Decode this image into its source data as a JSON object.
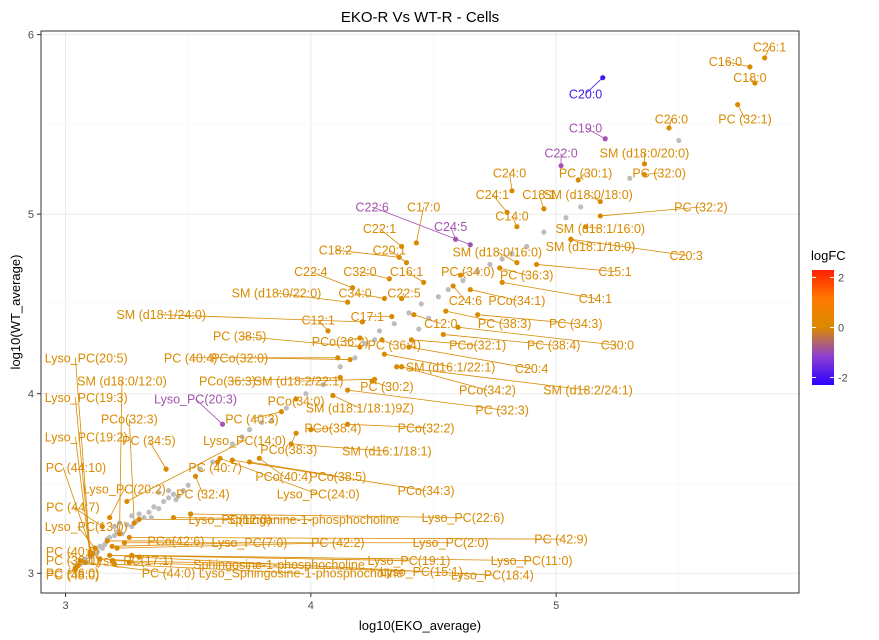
{
  "chart_data": {
    "type": "scatter",
    "title": "EKO-R Vs WT-R - Cells",
    "xlabel": "log10(EKO_average)",
    "ylabel": "log10(WT_average)",
    "xlim": [
      2.9,
      5.99
    ],
    "ylim": [
      2.89,
      6.02
    ],
    "xticks": [
      3,
      4,
      5
    ],
    "yticks": [
      3,
      4,
      5,
      6
    ],
    "grid": true,
    "legend": {
      "title": "logFC",
      "position": "right",
      "ticks": [
        2,
        0,
        -2
      ],
      "range": [
        -2.3,
        2.3
      ],
      "gradient": [
        "#2a00ff",
        "#8e3fd0",
        "#d98a00",
        "#ff7a00",
        "#ff2000"
      ]
    },
    "colors": {
      "grey": "#bdbdbd",
      "orange": "#d98a00",
      "purple": "#a452b0",
      "blue": "#3a1cf0"
    },
    "labeled_points": [
      {
        "label": "C26:1",
        "x": 5.85,
        "y": 5.87,
        "logFC": 0.1,
        "lx": 5.87,
        "ly": 5.93
      },
      {
        "label": "C16:0",
        "x": 5.79,
        "y": 5.82,
        "logFC": 0.15,
        "lx": 5.69,
        "ly": 5.85
      },
      {
        "label": "C18:0",
        "x": 5.81,
        "y": 5.73,
        "logFC": 0.2,
        "lx": 5.79,
        "ly": 5.76
      },
      {
        "label": "C20:0",
        "x": 5.19,
        "y": 5.76,
        "logFC": -2.3,
        "lx": 5.12,
        "ly": 5.67
      },
      {
        "label": "PC (32:1)",
        "x": 5.74,
        "y": 5.61,
        "logFC": 0.3,
        "lx": 5.77,
        "ly": 5.53
      },
      {
        "label": "C26:0",
        "x": 5.46,
        "y": 5.48,
        "logFC": 0.2,
        "lx": 5.47,
        "ly": 5.53
      },
      {
        "label": "C19:0",
        "x": 5.2,
        "y": 5.42,
        "logFC": -1.0,
        "lx": 5.12,
        "ly": 5.48
      },
      {
        "label": "C22:0",
        "x": 5.02,
        "y": 5.27,
        "logFC": -1.2,
        "lx": 5.02,
        "ly": 5.34
      },
      {
        "label": "SM (d18:0/20:0)",
        "x": 5.36,
        "y": 5.28,
        "logFC": 0.25,
        "lx": 5.36,
        "ly": 5.34
      },
      {
        "label": "PC (30:1)",
        "x": 5.09,
        "y": 5.19,
        "logFC": 0.25,
        "lx": 5.12,
        "ly": 5.23
      },
      {
        "label": "PC (32:0)",
        "x": 5.36,
        "y": 5.22,
        "logFC": 0.3,
        "lx": 5.42,
        "ly": 5.23
      },
      {
        "label": "C24:0",
        "x": 4.82,
        "y": 5.13,
        "logFC": 0.15,
        "lx": 4.81,
        "ly": 5.23
      },
      {
        "label": "C24:1",
        "x": 4.8,
        "y": 5.01,
        "logFC": 0.15,
        "lx": 4.74,
        "ly": 5.11
      },
      {
        "label": "C18:1",
        "x": 4.95,
        "y": 5.03,
        "logFC": 0.1,
        "lx": 4.93,
        "ly": 5.11
      },
      {
        "label": "SM (d18:0/18:0)",
        "x": 5.18,
        "y": 5.07,
        "logFC": 0.25,
        "lx": 5.13,
        "ly": 5.11
      },
      {
        "label": "PC (32:2)",
        "x": 5.18,
        "y": 4.99,
        "logFC": 0.3,
        "lx": 5.59,
        "ly": 5.04
      },
      {
        "label": "C22:6",
        "x": 4.65,
        "y": 4.83,
        "logFC": -1.5,
        "lx": 4.25,
        "ly": 5.04
      },
      {
        "label": "C17:0",
        "x": 4.43,
        "y": 4.84,
        "logFC": 0.1,
        "lx": 4.46,
        "ly": 5.04
      },
      {
        "label": "C14:0",
        "x": 4.84,
        "y": 4.93,
        "logFC": 0.15,
        "lx": 4.82,
        "ly": 4.99
      },
      {
        "label": "C24:5",
        "x": 4.59,
        "y": 4.86,
        "logFC": -0.8,
        "lx": 4.57,
        "ly": 4.93
      },
      {
        "label": "SM (d18:1/16:0)",
        "x": 5.12,
        "y": 4.93,
        "logFC": 0.25,
        "lx": 5.18,
        "ly": 4.92
      },
      {
        "label": "C22:1",
        "x": 4.37,
        "y": 4.82,
        "logFC": 0.1,
        "lx": 4.28,
        "ly": 4.92
      },
      {
        "label": "SM (d18:1/18:0)",
        "x": 5.06,
        "y": 4.86,
        "logFC": 0.25,
        "lx": 5.14,
        "ly": 4.82
      },
      {
        "label": "C20:3",
        "x": 5.06,
        "y": 4.86,
        "logFC": 0.3,
        "lx": 5.53,
        "ly": 4.77
      },
      {
        "label": "C18:2",
        "x": 4.36,
        "y": 4.76,
        "logFC": 0.1,
        "lx": 4.1,
        "ly": 4.8
      },
      {
        "label": "C20:1",
        "x": 4.39,
        "y": 4.73,
        "logFC": 0.1,
        "lx": 4.32,
        "ly": 4.8
      },
      {
        "label": "SM (d18:0/16:0)",
        "x": 4.84,
        "y": 4.73,
        "logFC": 0.25,
        "lx": 4.76,
        "ly": 4.79
      },
      {
        "label": "C22:4",
        "x": 4.17,
        "y": 4.59,
        "logFC": 0.1,
        "lx": 4.0,
        "ly": 4.68
      },
      {
        "label": "C32:0",
        "x": 4.32,
        "y": 4.64,
        "logFC": 0.1,
        "lx": 4.2,
        "ly": 4.68
      },
      {
        "label": "C16:1",
        "x": 4.46,
        "y": 4.62,
        "logFC": 0.1,
        "lx": 4.39,
        "ly": 4.68
      },
      {
        "label": "PC (34:0)",
        "x": 4.61,
        "y": 4.66,
        "logFC": 0.3,
        "lx": 4.64,
        "ly": 4.68
      },
      {
        "label": "PC (36:3)",
        "x": 4.77,
        "y": 4.7,
        "logFC": 0.3,
        "lx": 4.88,
        "ly": 4.66
      },
      {
        "label": "C15:1",
        "x": 4.92,
        "y": 4.72,
        "logFC": 0.3,
        "lx": 5.24,
        "ly": 4.68
      },
      {
        "label": "SM (d18:0/22:0)",
        "x": 4.15,
        "y": 4.51,
        "logFC": 0.25,
        "lx": 3.86,
        "ly": 4.56
      },
      {
        "label": "C34:0",
        "x": 4.3,
        "y": 4.53,
        "logFC": 0.1,
        "lx": 4.18,
        "ly": 4.56
      },
      {
        "label": "C22:5",
        "x": 4.37,
        "y": 4.53,
        "logFC": 0.1,
        "lx": 4.38,
        "ly": 4.56
      },
      {
        "label": "C24:6",
        "x": 4.58,
        "y": 4.6,
        "logFC": 0.1,
        "lx": 4.63,
        "ly": 4.52
      },
      {
        "label": "PCo(34:1)",
        "x": 4.65,
        "y": 4.58,
        "logFC": 0.25,
        "lx": 4.84,
        "ly": 4.52
      },
      {
        "label": "C14:1",
        "x": 4.78,
        "y": 4.62,
        "logFC": 0.3,
        "lx": 5.16,
        "ly": 4.53
      },
      {
        "label": "SM (d18:1/24:0)",
        "x": 4.21,
        "y": 4.4,
        "logFC": 0.25,
        "lx": 3.39,
        "ly": 4.44
      },
      {
        "label": "C12:1",
        "x": 4.07,
        "y": 4.35,
        "logFC": 0.1,
        "lx": 4.03,
        "ly": 4.41
      },
      {
        "label": "C17:1",
        "x": 4.33,
        "y": 4.43,
        "logFC": 0.1,
        "lx": 4.23,
        "ly": 4.43
      },
      {
        "label": "C12:0",
        "x": 4.42,
        "y": 4.44,
        "logFC": 0.1,
        "lx": 4.53,
        "ly": 4.39
      },
      {
        "label": "PC (38:3)",
        "x": 4.55,
        "y": 4.46,
        "logFC": 0.3,
        "lx": 4.79,
        "ly": 4.39
      },
      {
        "label": "PC (34:3)",
        "x": 4.68,
        "y": 4.44,
        "logFC": 0.3,
        "lx": 5.08,
        "ly": 4.39
      },
      {
        "label": "PC (38:5)",
        "x": 4.2,
        "y": 4.26,
        "logFC": 0.3,
        "lx": 3.71,
        "ly": 4.32
      },
      {
        "label": "PCo(36:2)",
        "x": 4.2,
        "y": 4.31,
        "logFC": 0.25,
        "lx": 4.12,
        "ly": 4.29
      },
      {
        "label": "PC (36:4)",
        "x": 4.29,
        "y": 4.3,
        "logFC": 0.3,
        "lx": 4.34,
        "ly": 4.27
      },
      {
        "label": "PCo(32:1)",
        "x": 4.41,
        "y": 4.3,
        "logFC": 0.25,
        "lx": 4.68,
        "ly": 4.27
      },
      {
        "label": "PC (38:4)",
        "x": 4.54,
        "y": 4.33,
        "logFC": 0.3,
        "lx": 4.99,
        "ly": 4.27
      },
      {
        "label": "C30:0",
        "x": 4.6,
        "y": 4.37,
        "logFC": 0.3,
        "lx": 5.25,
        "ly": 4.27
      },
      {
        "label": "PC (40:4)",
        "x": 4.11,
        "y": 4.2,
        "logFC": 0.3,
        "lx": 3.51,
        "ly": 4.2
      },
      {
        "label": "PCo(32:0)",
        "x": 4.16,
        "y": 4.19,
        "logFC": 0.25,
        "lx": 3.71,
        "ly": 4.2
      },
      {
        "label": "SM (d16:1/22:1)",
        "x": 4.3,
        "y": 4.22,
        "logFC": 0.25,
        "lx": 4.57,
        "ly": 4.15
      },
      {
        "label": "C20:4",
        "x": 4.4,
        "y": 4.26,
        "logFC": 0.3,
        "lx": 4.9,
        "ly": 4.14
      },
      {
        "label": "Lyso_PC(20:5)",
        "x": 3.1,
        "y": 3.12,
        "logFC": 0.1,
        "lx": 3.04,
        "ly": 4.2
      },
      {
        "label": "SM (d18:0/12:0)",
        "x": 3.22,
        "y": 3.22,
        "logFC": 0.25,
        "lx": 3.23,
        "ly": 4.07
      },
      {
        "label": "PCo(36:3)",
        "x": 4.12,
        "y": 4.09,
        "logFC": 0.25,
        "lx": 3.66,
        "ly": 4.07
      },
      {
        "label": "SM (d18:2/22:1)",
        "x": 4.26,
        "y": 4.08,
        "logFC": 0.25,
        "lx": 3.95,
        "ly": 4.07
      },
      {
        "label": "PC (30:2)",
        "x": 4.25,
        "y": 4.07,
        "logFC": 0.3,
        "lx": 4.31,
        "ly": 4.04
      },
      {
        "label": "PCo(34:2)",
        "x": 4.37,
        "y": 4.15,
        "logFC": 0.25,
        "lx": 4.72,
        "ly": 4.02
      },
      {
        "label": "SM (d18:2/24:1)",
        "x": 4.35,
        "y": 4.15,
        "logFC": 0.25,
        "lx": 5.13,
        "ly": 4.02
      },
      {
        "label": "Lyso_PC(19:3)",
        "x": 3.1,
        "y": 3.11,
        "logFC": 0.1,
        "lx": 3.04,
        "ly": 3.98
      },
      {
        "label": "Lyso_PC(20:3)",
        "x": 3.64,
        "y": 3.83,
        "logFC": -0.5,
        "lx": 3.53,
        "ly": 3.97
      },
      {
        "label": "PCo(34:0)",
        "x": 3.94,
        "y": 3.97,
        "logFC": 0.25,
        "lx": 3.94,
        "ly": 3.96
      },
      {
        "label": "SM (d18:1/18:1)9Z)",
        "x": 4.09,
        "y": 3.99,
        "logFC": 0.25,
        "lx": 4.2,
        "ly": 3.92
      },
      {
        "label": "PC (32:3)",
        "x": 4.15,
        "y": 4.02,
        "logFC": 0.3,
        "lx": 4.78,
        "ly": 3.91
      },
      {
        "label": "PCo(32:3)",
        "x": 3.28,
        "y": 3.28,
        "logFC": 0.25,
        "lx": 3.26,
        "ly": 3.86
      },
      {
        "label": "PC (40:3)",
        "x": 3.88,
        "y": 3.9,
        "logFC": 0.3,
        "lx": 3.76,
        "ly": 3.86
      },
      {
        "label": "PCo(38:4)",
        "x": 4.0,
        "y": 3.8,
        "logFC": 0.25,
        "lx": 4.09,
        "ly": 3.81
      },
      {
        "label": "PCo(32:2)",
        "x": 4.15,
        "y": 3.83,
        "logFC": 0.25,
        "lx": 4.47,
        "ly": 3.81
      },
      {
        "label": "Lyso_PC(19:2)",
        "x": 3.1,
        "y": 3.1,
        "logFC": 0.1,
        "lx": 3.04,
        "ly": 3.76
      },
      {
        "label": "PC (34:5)",
        "x": 3.41,
        "y": 3.58,
        "logFC": 0.3,
        "lx": 3.34,
        "ly": 3.74
      },
      {
        "label": "Lyso_PC(14:0)",
        "x": 3.25,
        "y": 3.4,
        "logFC": 0.1,
        "lx": 3.73,
        "ly": 3.74
      },
      {
        "label": "PCo(38:3)",
        "x": 3.94,
        "y": 3.78,
        "logFC": 0.25,
        "lx": 3.91,
        "ly": 3.69
      },
      {
        "label": "SM (d16:1/18:1)",
        "x": 3.92,
        "y": 3.72,
        "logFC": 0.25,
        "lx": 4.31,
        "ly": 3.68
      },
      {
        "label": "PC (44:10)",
        "x": 3.11,
        "y": 3.11,
        "logFC": 0.3,
        "lx": 2.99,
        "ly": 3.59
      },
      {
        "label": "PC (40:7)",
        "x": 3.62,
        "y": 3.62,
        "logFC": 0.3,
        "lx": 3.61,
        "ly": 3.59
      },
      {
        "label": "PCo(40:4)",
        "x": 3.79,
        "y": 3.64,
        "logFC": 0.25,
        "lx": 3.89,
        "ly": 3.54
      },
      {
        "label": "PCo(38:5)",
        "x": 3.75,
        "y": 3.62,
        "logFC": 0.25,
        "lx": 4.11,
        "ly": 3.54
      },
      {
        "label": "Lyso_PC(20:2)",
        "x": 3.18,
        "y": 3.31,
        "logFC": 0.1,
        "lx": 3.24,
        "ly": 3.47
      },
      {
        "label": "PC (32:4)",
        "x": 3.53,
        "y": 3.54,
        "logFC": 0.3,
        "lx": 3.56,
        "ly": 3.44
      },
      {
        "label": "Lyso_PC(24:0)",
        "x": 3.63,
        "y": 3.64,
        "logFC": 0.1,
        "lx": 4.03,
        "ly": 3.44
      },
      {
        "label": "PCo(34:3)",
        "x": 3.68,
        "y": 3.63,
        "logFC": 0.25,
        "lx": 4.47,
        "ly": 3.46
      },
      {
        "label": "PC (44:7)",
        "x": 3.15,
        "y": 3.26,
        "logFC": 0.3,
        "lx": 3.03,
        "ly": 3.37
      },
      {
        "label": "Lyso_PC(13:0)",
        "x": 3.12,
        "y": 3.14,
        "logFC": 0.1,
        "lx": 3.05,
        "ly": 3.26
      },
      {
        "label": "Lyso_PC(12:0)",
        "x": 3.3,
        "y": 3.3,
        "logFC": 0.1,
        "lx": 3.67,
        "ly": 3.3
      },
      {
        "label": "Sphinganine-1-phosphocholine",
        "x": 3.44,
        "y": 3.31,
        "logFC": 0.1,
        "lx": 4.01,
        "ly": 3.3
      },
      {
        "label": "Lyso_PC(22:6)",
        "x": 3.51,
        "y": 3.33,
        "logFC": 0.1,
        "lx": 4.62,
        "ly": 3.31
      },
      {
        "label": "PCo(42:6)",
        "x": 3.17,
        "y": 3.18,
        "logFC": 0.25,
        "lx": 3.45,
        "ly": 3.18
      },
      {
        "label": "Lyso_PC(7:0)",
        "x": 3.19,
        "y": 3.15,
        "logFC": 0.1,
        "lx": 3.75,
        "ly": 3.17
      },
      {
        "label": "PC (42:2)",
        "x": 3.21,
        "y": 3.14,
        "logFC": 0.3,
        "lx": 4.11,
        "ly": 3.17
      },
      {
        "label": "Lyso_PC(2:0)",
        "x": 3.24,
        "y": 3.17,
        "logFC": 0.1,
        "lx": 4.57,
        "ly": 3.17
      },
      {
        "label": "PC (42:9)",
        "x": 3.26,
        "y": 3.2,
        "logFC": 0.3,
        "lx": 5.02,
        "ly": 3.19
      },
      {
        "label": "PC (40:0)",
        "x": 3.06,
        "y": 3.07,
        "logFC": 0.3,
        "lx": 3.01,
        "ly": 3.12
      },
      {
        "label": "Lyso_PC(11:0)",
        "x": 3.27,
        "y": 3.1,
        "logFC": 0.1,
        "lx": 4.9,
        "ly": 3.07
      },
      {
        "label": "Lyso_PC(19:1)",
        "x": 3.18,
        "y": 3.1,
        "logFC": 0.1,
        "lx": 4.4,
        "ly": 3.07
      },
      {
        "label": "PC (38:0)",
        "x": 3.05,
        "y": 3.04,
        "logFC": 0.3,
        "lx": 3.01,
        "ly": 3.07
      },
      {
        "label": "Lyso_PC(17:1)",
        "x": 3.14,
        "y": 3.08,
        "logFC": 0.1,
        "lx": 3.27,
        "ly": 3.07
      },
      {
        "label": "Sphingosine-1-phosphocholine",
        "x": 3.19,
        "y": 3.07,
        "logFC": 0.1,
        "lx": 3.87,
        "ly": 3.05
      },
      {
        "label": "Lyso_PC(15:1)",
        "x": 3.26,
        "y": 3.06,
        "logFC": 0.1,
        "lx": 4.45,
        "ly": 3.01
      },
      {
        "label": "Lyso_PC(18:4)",
        "x": 3.3,
        "y": 3.09,
        "logFC": 0.1,
        "lx": 4.74,
        "ly": 2.99
      },
      {
        "label": "PC (44:0)",
        "x": 3.08,
        "y": 3.06,
        "logFC": 0.3,
        "lx": 3.42,
        "ly": 3.0
      },
      {
        "label": "Lyso_Sphingosine-1-phosphocholine",
        "x": 3.2,
        "y": 3.05,
        "logFC": 0.1,
        "lx": 3.96,
        "ly": 3.0
      },
      {
        "label": "PC (36:0)",
        "x": 3.04,
        "y": 3.03,
        "logFC": 0.3,
        "lx": 3.01,
        "ly": 3.0
      },
      {
        "label": "PC (48:0)",
        "x": 3.04,
        "y": 3.02,
        "logFC": 0.3,
        "lx": 3.01,
        "ly": 2.99
      }
    ],
    "grey_points": [
      [
        3.04,
        3.03
      ],
      [
        3.05,
        3.05
      ],
      [
        3.06,
        3.05
      ],
      [
        3.07,
        3.07
      ],
      [
        3.08,
        3.08
      ],
      [
        3.09,
        3.06
      ],
      [
        3.1,
        3.09
      ],
      [
        3.11,
        3.1
      ],
      [
        3.12,
        3.11
      ],
      [
        3.13,
        3.12
      ],
      [
        3.14,
        3.15
      ],
      [
        3.15,
        3.14
      ],
      [
        3.16,
        3.16
      ],
      [
        3.17,
        3.19
      ],
      [
        3.18,
        3.2
      ],
      [
        3.2,
        3.21
      ],
      [
        3.21,
        3.23
      ],
      [
        3.23,
        3.22
      ],
      [
        3.25,
        3.27
      ],
      [
        3.27,
        3.26
      ],
      [
        3.29,
        3.29
      ],
      [
        3.3,
        3.33
      ],
      [
        3.32,
        3.31
      ],
      [
        3.34,
        3.34
      ],
      [
        3.36,
        3.37
      ],
      [
        3.38,
        3.36
      ],
      [
        3.4,
        3.4
      ],
      [
        3.42,
        3.42
      ],
      [
        3.44,
        3.44
      ],
      [
        3.46,
        3.43
      ],
      [
        3.48,
        3.46
      ],
      [
        3.5,
        3.49
      ],
      [
        3.38,
        3.45
      ],
      [
        3.42,
        3.46
      ],
      [
        3.45,
        3.41
      ],
      [
        3.2,
        3.26
      ],
      [
        3.22,
        3.28
      ],
      [
        3.35,
        3.31
      ],
      [
        3.27,
        3.32
      ],
      [
        3.55,
        3.58
      ],
      [
        3.6,
        3.62
      ],
      [
        3.68,
        3.72
      ],
      [
        3.72,
        3.76
      ],
      [
        3.75,
        3.8
      ],
      [
        3.8,
        3.84
      ],
      [
        3.84,
        3.85
      ],
      [
        3.9,
        3.92
      ],
      [
        3.98,
        4.0
      ],
      [
        4.05,
        4.05
      ],
      [
        4.12,
        4.15
      ],
      [
        4.18,
        4.2
      ],
      [
        4.22,
        4.28
      ],
      [
        4.26,
        4.3
      ],
      [
        4.28,
        4.35
      ],
      [
        4.34,
        4.39
      ],
      [
        4.4,
        4.45
      ],
      [
        4.45,
        4.5
      ],
      [
        4.52,
        4.54
      ],
      [
        4.56,
        4.58
      ],
      [
        4.62,
        4.63
      ],
      [
        4.68,
        4.68
      ],
      [
        4.73,
        4.72
      ],
      [
        4.78,
        4.75
      ],
      [
        4.82,
        4.78
      ],
      [
        4.88,
        4.82
      ],
      [
        4.95,
        4.9
      ],
      [
        5.04,
        4.98
      ],
      [
        5.1,
        5.04
      ],
      [
        5.3,
        5.2
      ],
      [
        5.5,
        5.41
      ],
      [
        4.48,
        4.42
      ],
      [
        4.44,
        4.36
      ]
    ]
  }
}
